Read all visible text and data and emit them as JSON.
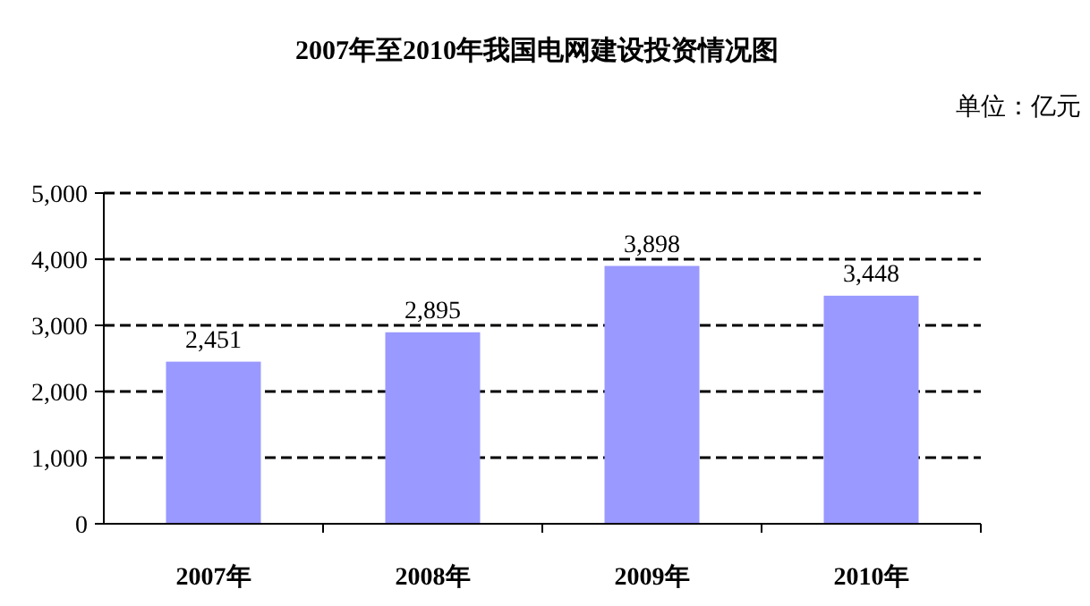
{
  "chart_data": {
    "type": "bar",
    "title": "2007年至2010年我国电网建设投资情况图",
    "annotations": [
      "单位：亿元"
    ],
    "categories": [
      "2007年",
      "2008年",
      "2009年",
      "2010年"
    ],
    "values": [
      2451,
      2895,
      3898,
      3448
    ],
    "color": "#9999ff",
    "ylim": [
      0,
      5000
    ],
    "yticks": [
      0,
      {
        "value": 1000,
        "label": "1,000"
      },
      {
        "value": 2000,
        "label": "2,000"
      },
      {
        "value": 3000,
        "label": "3,000"
      },
      {
        "value": 4000,
        "label": "4,000"
      },
      {
        "value": 5000,
        "label": "5,000"
      }
    ],
    "grid": "y",
    "value_labels": [
      "2,451",
      "2,895",
      "3,898",
      "3,448"
    ]
  }
}
